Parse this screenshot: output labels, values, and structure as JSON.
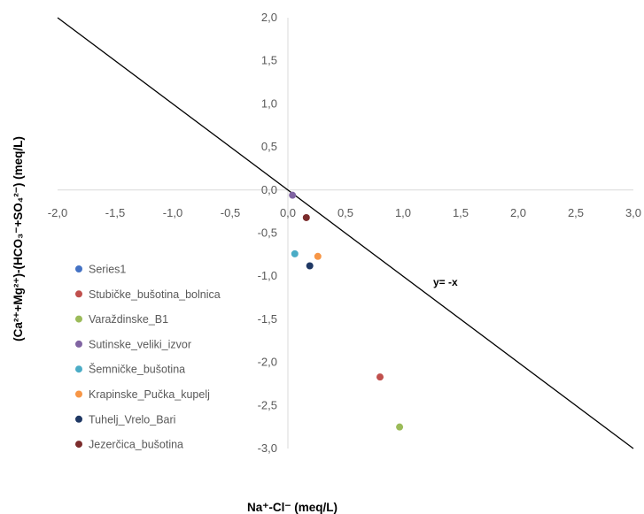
{
  "chart_data": {
    "type": "scatter",
    "xlabel": "Na⁺-Cl⁻ (meq/L)",
    "ylabel": "(Ca²⁺+Mg²⁺)-(HCO₃⁻+SO₄²⁻) (meq/L)",
    "xlim": [
      -2.0,
      3.0
    ],
    "ylim": [
      -3.0,
      2.0
    ],
    "x_ticks": [
      "-2,0",
      "-1,5",
      "-1,0",
      "-0,5",
      "0,0",
      "0,5",
      "1,0",
      "1,5",
      "2,0",
      "2,5",
      "3,0"
    ],
    "y_ticks": [
      "2,0",
      "1,5",
      "1,0",
      "0,5",
      "0,0",
      "-0,5",
      "-1,0",
      "-1,5",
      "-2,0",
      "-2,5",
      "-3,0"
    ],
    "grid": false,
    "legend_position": "left",
    "reference_line": {
      "label": "y= -x",
      "slope": -1,
      "intercept": 0,
      "color": "#000000"
    },
    "series": [
      {
        "name": "Series1",
        "color": "#4472C4",
        "points": []
      },
      {
        "name": "Stubičke_bušotina_bolnica",
        "color": "#C0504D",
        "points": [
          [
            0.8,
            -2.17
          ]
        ]
      },
      {
        "name": "Varaždinske_B1",
        "color": "#9BBB59",
        "points": [
          [
            0.97,
            -2.75
          ]
        ]
      },
      {
        "name": "Sutinske_veliki_izvor",
        "color": "#8064A2",
        "points": [
          [
            0.04,
            -0.06
          ]
        ]
      },
      {
        "name": "Šemničke_bušotina",
        "color": "#4BACC6",
        "points": [
          [
            0.06,
            -0.74
          ]
        ]
      },
      {
        "name": "Krapinske_Pučka_kupelj",
        "color": "#F79646",
        "points": [
          [
            0.26,
            -0.77
          ]
        ]
      },
      {
        "name": "Tuhelj_Vrelo_Bari",
        "color": "#1F3864",
        "points": [
          [
            0.19,
            -0.88
          ]
        ]
      },
      {
        "name": "Jezerčica_bušotina",
        "color": "#7B2C2C",
        "points": [
          [
            0.16,
            -0.32
          ]
        ]
      }
    ]
  }
}
